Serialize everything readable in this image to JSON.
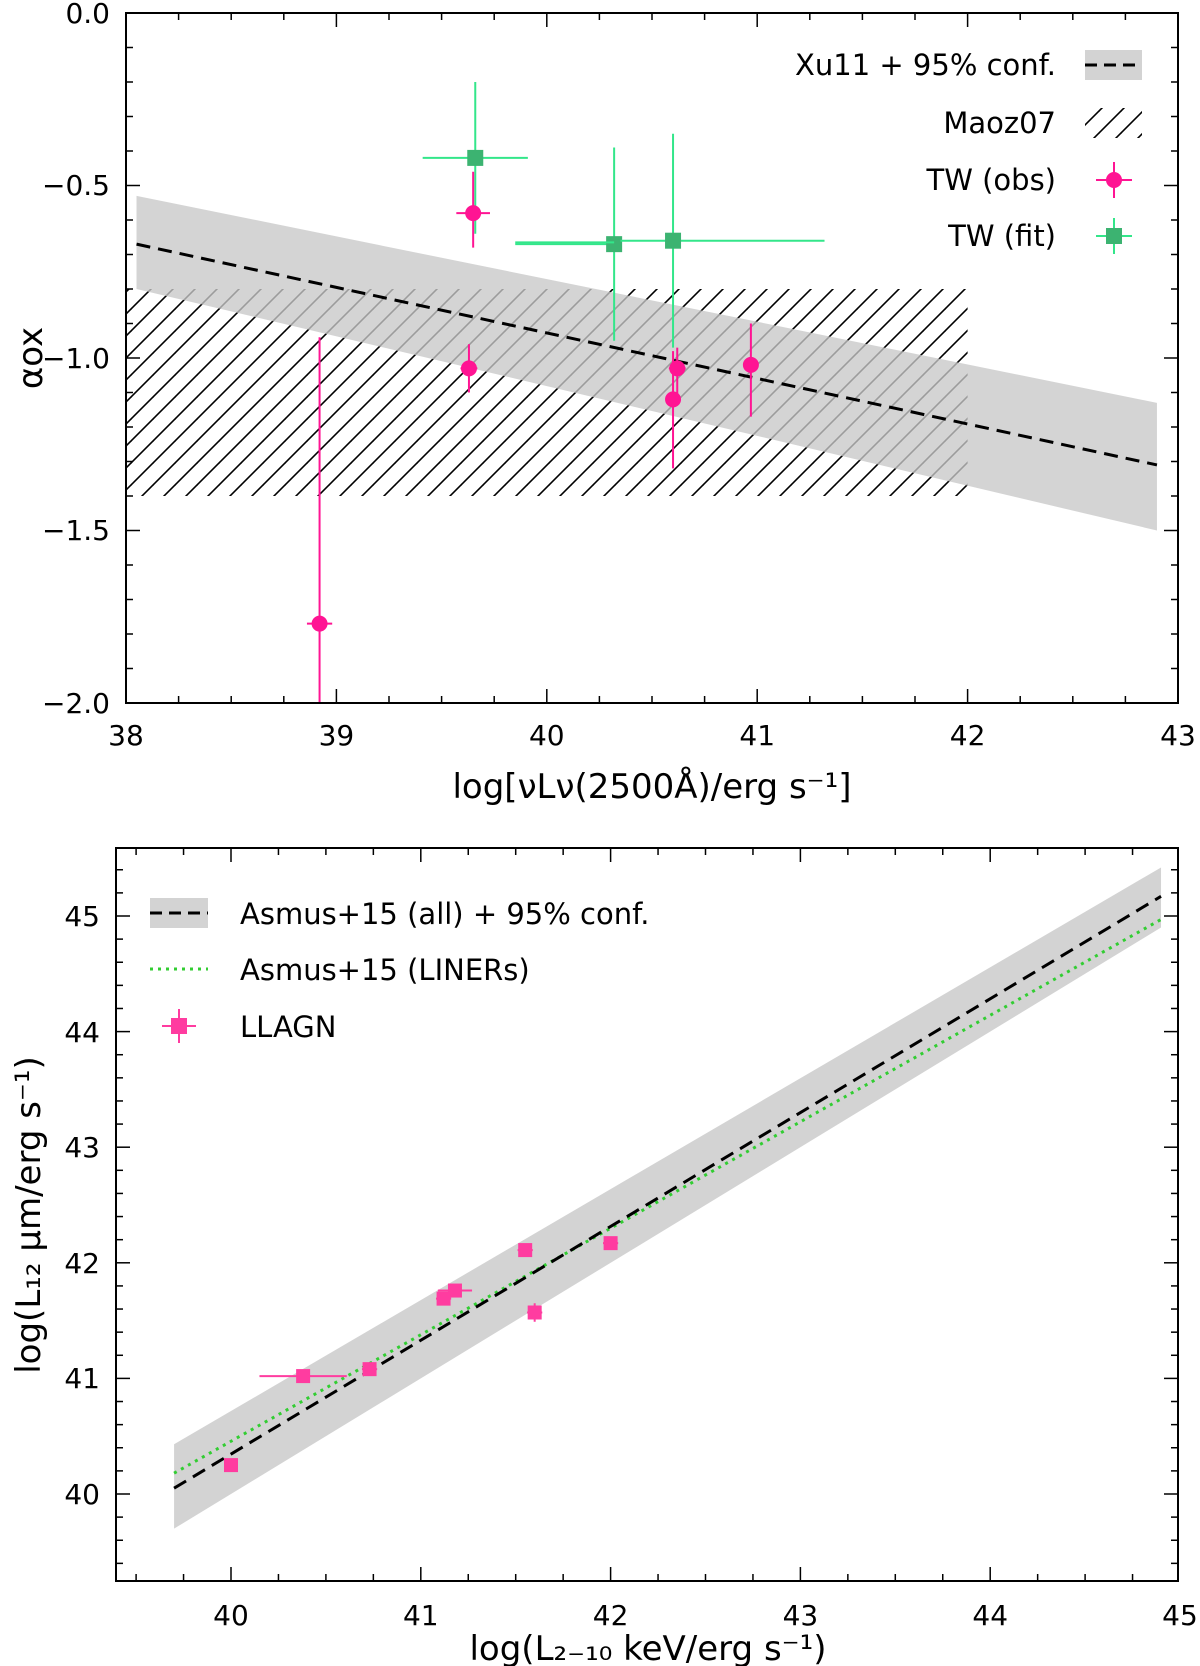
{
  "chart_data": [
    {
      "type": "scatter",
      "xlabel": "log[νLν(2500Å)/erg s⁻¹]",
      "ylabel": "αox",
      "xlim": [
        38,
        43
      ],
      "ylim": [
        -2.0,
        0.0
      ],
      "xticks": [
        38,
        39,
        40,
        41,
        42,
        43
      ],
      "xtick_labels": [
        "38",
        "39",
        "40",
        "41",
        "42",
        "43"
      ],
      "yticks": [
        -2.0,
        -1.5,
        -1.0,
        -0.5,
        0.0
      ],
      "ytick_labels": [
        "−2.0",
        "−1.5",
        "−1.0",
        "−0.5",
        "0.0"
      ],
      "legend": [
        {
          "label": "Xu11 + 95% conf.",
          "kind": "band-dashed"
        },
        {
          "label": "Maoz07",
          "kind": "hatch"
        },
        {
          "label": "TW (obs)",
          "kind": "circle"
        },
        {
          "label": "TW (fit)",
          "kind": "square"
        }
      ],
      "fit_line": {
        "x": [
          38.05,
          42.9
        ],
        "y": [
          -0.67,
          -1.31
        ]
      },
      "conf_band": {
        "x": [
          38.05,
          42.9
        ],
        "upper": [
          -0.53,
          -1.13
        ],
        "lower": [
          -0.8,
          -1.5
        ]
      },
      "hatch_region": {
        "x": [
          38.0,
          42.0
        ],
        "y": [
          -1.4,
          -0.8
        ]
      },
      "series": [
        {
          "name": "TW (obs)",
          "color": "#ff1493",
          "marker": "circle",
          "points": [
            {
              "x": 39.65,
              "y": -0.58,
              "xerr": 0.08,
              "yerr_lo": 0.1,
              "yerr_hi": 0.12
            },
            {
              "x": 39.63,
              "y": -1.03,
              "xerr": 0.04,
              "yerr_lo": 0.07,
              "yerr_hi": 0.07
            },
            {
              "x": 40.62,
              "y": -1.03,
              "xerr": 0.04,
              "yerr_lo": 0.08,
              "yerr_hi": 0.06
            },
            {
              "x": 40.6,
              "y": -1.12,
              "xerr": 0.03,
              "yerr_lo": 0.2,
              "yerr_hi": 0.14
            },
            {
              "x": 40.97,
              "y": -1.02,
              "xerr": 0.03,
              "yerr_lo": 0.15,
              "yerr_hi": 0.12
            },
            {
              "x": 38.92,
              "y": -1.77,
              "xerr": 0.06,
              "yerr_lo": 0.25,
              "yerr_hi": 0.83
            }
          ]
        },
        {
          "name": "TW (fit)",
          "color": "#3cb371",
          "errcolor": "#33e68a",
          "marker": "square",
          "points": [
            {
              "x": 39.66,
              "y": -0.42,
              "xerr_lo": 0.25,
              "xerr_hi": 0.25,
              "yerr_lo": 0.22,
              "yerr_hi": 0.22
            },
            {
              "x": 40.32,
              "y": -0.67,
              "xerr_lo": 0.47,
              "xerr_hi": 0.0,
              "yerr_lo": 0.28,
              "yerr_hi": 0.28
            },
            {
              "x": 40.6,
              "y": -0.66,
              "xerr_lo": 0.25,
              "xerr_hi": 0.72,
              "yerr_lo": 0.31,
              "yerr_hi": 0.31
            }
          ]
        }
      ]
    },
    {
      "type": "scatter",
      "xlabel": "log(L₂₋₁₀ keV/erg s⁻¹)",
      "ylabel": "log(L₁₂ μm/erg s⁻¹)",
      "xlim": [
        39.5,
        45.0
      ],
      "ylim": [
        39.4,
        45.6
      ],
      "xticks": [
        40,
        41,
        42,
        43,
        44,
        45
      ],
      "xtick_labels": [
        "40",
        "41",
        "42",
        "43",
        "44",
        "45"
      ],
      "yticks": [
        40,
        41,
        42,
        43,
        44,
        45
      ],
      "ytick_labels": [
        "40",
        "41",
        "42",
        "43",
        "44",
        "45"
      ],
      "legend": [
        {
          "label": "Asmus+15 (all) + 95% conf.",
          "kind": "band-dashed"
        },
        {
          "label": "Asmus+15 (LINERs)",
          "kind": "dotted"
        },
        {
          "label": "LLAGN",
          "kind": "square"
        }
      ],
      "fit_line_all": {
        "x": [
          39.7,
          44.9
        ],
        "y": [
          40.05,
          45.17
        ]
      },
      "fit_line_liners": {
        "x": [
          39.7,
          44.9
        ],
        "y": [
          40.18,
          44.97
        ]
      },
      "conf_band": {
        "x": [
          39.7,
          44.9
        ],
        "upper": [
          40.43,
          45.42
        ],
        "lower": [
          39.7,
          44.9
        ]
      },
      "series": [
        {
          "name": "LLAGN",
          "color": "#ff3ca0",
          "marker": "square",
          "points": [
            {
              "x": 40.0,
              "y": 40.25,
              "xerr": 0.0,
              "yerr": 0.04
            },
            {
              "x": 40.38,
              "y": 41.02,
              "xerr": 0.23,
              "yerr": 0.04
            },
            {
              "x": 40.73,
              "y": 41.08,
              "xerr": 0.04,
              "yerr": 0.04
            },
            {
              "x": 41.12,
              "y": 41.69,
              "xerr": 0.04,
              "yerr": 0.04
            },
            {
              "x": 41.18,
              "y": 41.76,
              "xerr": 0.09,
              "yerr": 0.04
            },
            {
              "x": 41.55,
              "y": 42.11,
              "xerr": 0.04,
              "yerr": 0.04
            },
            {
              "x": 41.6,
              "y": 41.57,
              "xerr": 0.04,
              "yerr": 0.08
            },
            {
              "x": 42.0,
              "y": 42.17,
              "xerr": 0.04,
              "yerr": 0.04
            }
          ]
        }
      ]
    }
  ]
}
